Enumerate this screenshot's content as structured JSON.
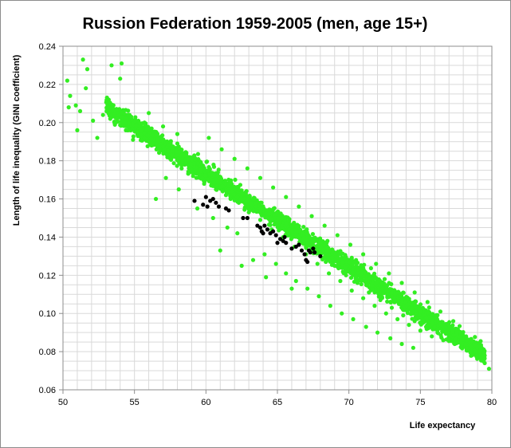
{
  "chart_data": {
    "type": "scatter",
    "title": "Russion Federation 1959-2005 (men, age 15+)",
    "xlabel": "Life expectancy",
    "ylabel": "Length of life inequality (GINI coefficient)",
    "xlim": [
      50,
      80
    ],
    "ylim": [
      0.06,
      0.24
    ],
    "xticks": [
      "50",
      "55",
      "60",
      "65",
      "70",
      "75",
      "80"
    ],
    "yticks": [
      "0.06",
      "0.08",
      "0.10",
      "0.12",
      "0.14",
      "0.16",
      "0.18",
      "0.20",
      "0.22",
      "0.24"
    ],
    "grid": true,
    "legend": "none",
    "colors": {
      "cloud": "#33ee22",
      "highlight": "#000000",
      "grid": "#d9d9d9",
      "axis": "#8c8c8c"
    },
    "series": [
      {
        "color": "#33ee22",
        "points": [
          [
            50.3,
            0.222
          ],
          [
            50.5,
            0.214
          ],
          [
            50.4,
            0.208
          ],
          [
            50.9,
            0.209
          ],
          [
            51.4,
            0.233
          ],
          [
            51.7,
            0.228
          ],
          [
            51.6,
            0.218
          ],
          [
            51.2,
            0.206
          ],
          [
            51.0,
            0.196
          ],
          [
            52.1,
            0.201
          ],
          [
            52.4,
            0.192
          ],
          [
            52.8,
            0.204
          ],
          [
            53.4,
            0.23
          ],
          [
            54.1,
            0.231
          ],
          [
            54.0,
            0.223
          ],
          [
            53.2,
            0.212
          ],
          [
            53.6,
            0.2
          ],
          [
            54.4,
            0.196
          ],
          [
            54.9,
            0.191
          ],
          [
            55.3,
            0.197
          ],
          [
            55.7,
            0.2
          ],
          [
            56.2,
            0.188
          ],
          [
            56.8,
            0.192
          ],
          [
            57.1,
            0.185
          ],
          [
            57.6,
            0.182
          ],
          [
            58.0,
            0.189
          ],
          [
            58.3,
            0.176
          ],
          [
            58.8,
            0.181
          ],
          [
            59.1,
            0.172
          ],
          [
            59.5,
            0.178
          ],
          [
            59.9,
            0.169
          ],
          [
            60.3,
            0.174
          ],
          [
            60.7,
            0.165
          ],
          [
            61.0,
            0.17
          ],
          [
            61.4,
            0.162
          ],
          [
            61.9,
            0.166
          ],
          [
            62.3,
            0.158
          ],
          [
            62.7,
            0.163
          ],
          [
            63.0,
            0.153
          ],
          [
            63.4,
            0.157
          ],
          [
            63.8,
            0.149
          ],
          [
            64.2,
            0.152
          ],
          [
            64.6,
            0.144
          ],
          [
            65.0,
            0.148
          ],
          [
            65.4,
            0.14
          ],
          [
            65.8,
            0.143
          ],
          [
            66.2,
            0.135
          ],
          [
            66.6,
            0.139
          ],
          [
            67.0,
            0.131
          ],
          [
            67.4,
            0.134
          ],
          [
            67.8,
            0.126
          ],
          [
            68.2,
            0.129
          ],
          [
            68.6,
            0.121
          ],
          [
            69.0,
            0.125
          ],
          [
            69.4,
            0.117
          ],
          [
            69.8,
            0.12
          ],
          [
            70.2,
            0.112
          ],
          [
            70.6,
            0.116
          ],
          [
            71.0,
            0.108
          ],
          [
            71.4,
            0.111
          ],
          [
            71.8,
            0.104
          ],
          [
            72.2,
            0.107
          ],
          [
            72.6,
            0.1
          ],
          [
            73.0,
            0.103
          ],
          [
            73.4,
            0.097
          ],
          [
            73.8,
            0.099
          ],
          [
            74.2,
            0.094
          ],
          [
            74.6,
            0.096
          ],
          [
            75.0,
            0.091
          ],
          [
            75.4,
            0.093
          ],
          [
            75.8,
            0.088
          ],
          [
            76.2,
            0.09
          ],
          [
            76.6,
            0.086
          ],
          [
            77.0,
            0.087
          ],
          [
            77.4,
            0.084
          ],
          [
            77.8,
            0.085
          ],
          [
            78.2,
            0.082
          ],
          [
            78.6,
            0.08
          ],
          [
            79.0,
            0.078
          ],
          [
            79.5,
            0.074
          ],
          [
            79.8,
            0.071
          ],
          [
            56.5,
            0.16
          ],
          [
            57.2,
            0.171
          ],
          [
            58.1,
            0.165
          ],
          [
            59.4,
            0.155
          ],
          [
            60.5,
            0.15
          ],
          [
            61.5,
            0.145
          ],
          [
            62.2,
            0.142
          ],
          [
            63.3,
            0.128
          ],
          [
            64.1,
            0.131
          ],
          [
            64.9,
            0.126
          ],
          [
            65.6,
            0.121
          ],
          [
            66.3,
            0.117
          ],
          [
            67.1,
            0.113
          ],
          [
            67.9,
            0.109
          ],
          [
            68.7,
            0.104
          ],
          [
            69.5,
            0.1
          ],
          [
            70.3,
            0.097
          ],
          [
            71.2,
            0.093
          ],
          [
            72.0,
            0.09
          ],
          [
            72.9,
            0.087
          ],
          [
            73.7,
            0.084
          ],
          [
            74.5,
            0.082
          ],
          [
            60.2,
            0.192
          ],
          [
            61.1,
            0.186
          ],
          [
            62.0,
            0.181
          ],
          [
            62.9,
            0.176
          ],
          [
            63.8,
            0.171
          ],
          [
            64.7,
            0.166
          ],
          [
            65.6,
            0.161
          ],
          [
            66.5,
            0.156
          ],
          [
            67.4,
            0.151
          ],
          [
            68.3,
            0.146
          ],
          [
            69.2,
            0.141
          ],
          [
            70.1,
            0.136
          ],
          [
            71.0,
            0.131
          ],
          [
            71.9,
            0.126
          ],
          [
            72.8,
            0.121
          ],
          [
            73.7,
            0.116
          ],
          [
            74.6,
            0.111
          ],
          [
            75.5,
            0.106
          ],
          [
            76.4,
            0.101
          ],
          [
            77.3,
            0.096
          ],
          [
            56.0,
            0.205
          ],
          [
            57.0,
            0.198
          ],
          [
            58.0,
            0.194
          ],
          [
            61.0,
            0.133
          ],
          [
            62.5,
            0.125
          ],
          [
            64.2,
            0.119
          ],
          [
            66.0,
            0.113
          ],
          [
            68.5,
            0.138
          ],
          [
            70.5,
            0.128
          ],
          [
            72.5,
            0.118
          ],
          [
            74.0,
            0.108
          ],
          [
            76.0,
            0.098
          ],
          [
            77.5,
            0.092
          ],
          [
            78.5,
            0.085
          ],
          [
            79.2,
            0.079
          ]
        ]
      },
      {
        "color": "#000000",
        "points": [
          [
            59.2,
            0.159
          ],
          [
            59.8,
            0.157
          ],
          [
            60.0,
            0.161
          ],
          [
            60.1,
            0.156
          ],
          [
            60.3,
            0.159
          ],
          [
            60.5,
            0.16
          ],
          [
            60.7,
            0.158
          ],
          [
            60.9,
            0.156
          ],
          [
            61.4,
            0.155
          ],
          [
            61.6,
            0.154
          ],
          [
            62.6,
            0.15
          ],
          [
            62.9,
            0.15
          ],
          [
            63.6,
            0.146
          ],
          [
            63.8,
            0.145
          ],
          [
            63.9,
            0.143
          ],
          [
            64.1,
            0.146
          ],
          [
            64.3,
            0.144
          ],
          [
            64.5,
            0.142
          ],
          [
            64.7,
            0.143
          ],
          [
            64.9,
            0.141
          ],
          [
            65.2,
            0.139
          ],
          [
            65.4,
            0.138
          ],
          [
            65.5,
            0.14
          ],
          [
            65.6,
            0.137
          ],
          [
            66.3,
            0.135
          ],
          [
            66.5,
            0.136
          ],
          [
            66.7,
            0.133
          ],
          [
            66.9,
            0.131
          ],
          [
            67.0,
            0.128
          ],
          [
            67.1,
            0.127
          ],
          [
            67.2,
            0.133
          ],
          [
            67.3,
            0.132
          ],
          [
            67.5,
            0.134
          ],
          [
            67.6,
            0.132
          ],
          [
            68.0,
            0.13
          ],
          [
            65.0,
            0.137
          ],
          [
            64.0,
            0.142
          ],
          [
            66.0,
            0.134
          ]
        ]
      }
    ]
  }
}
